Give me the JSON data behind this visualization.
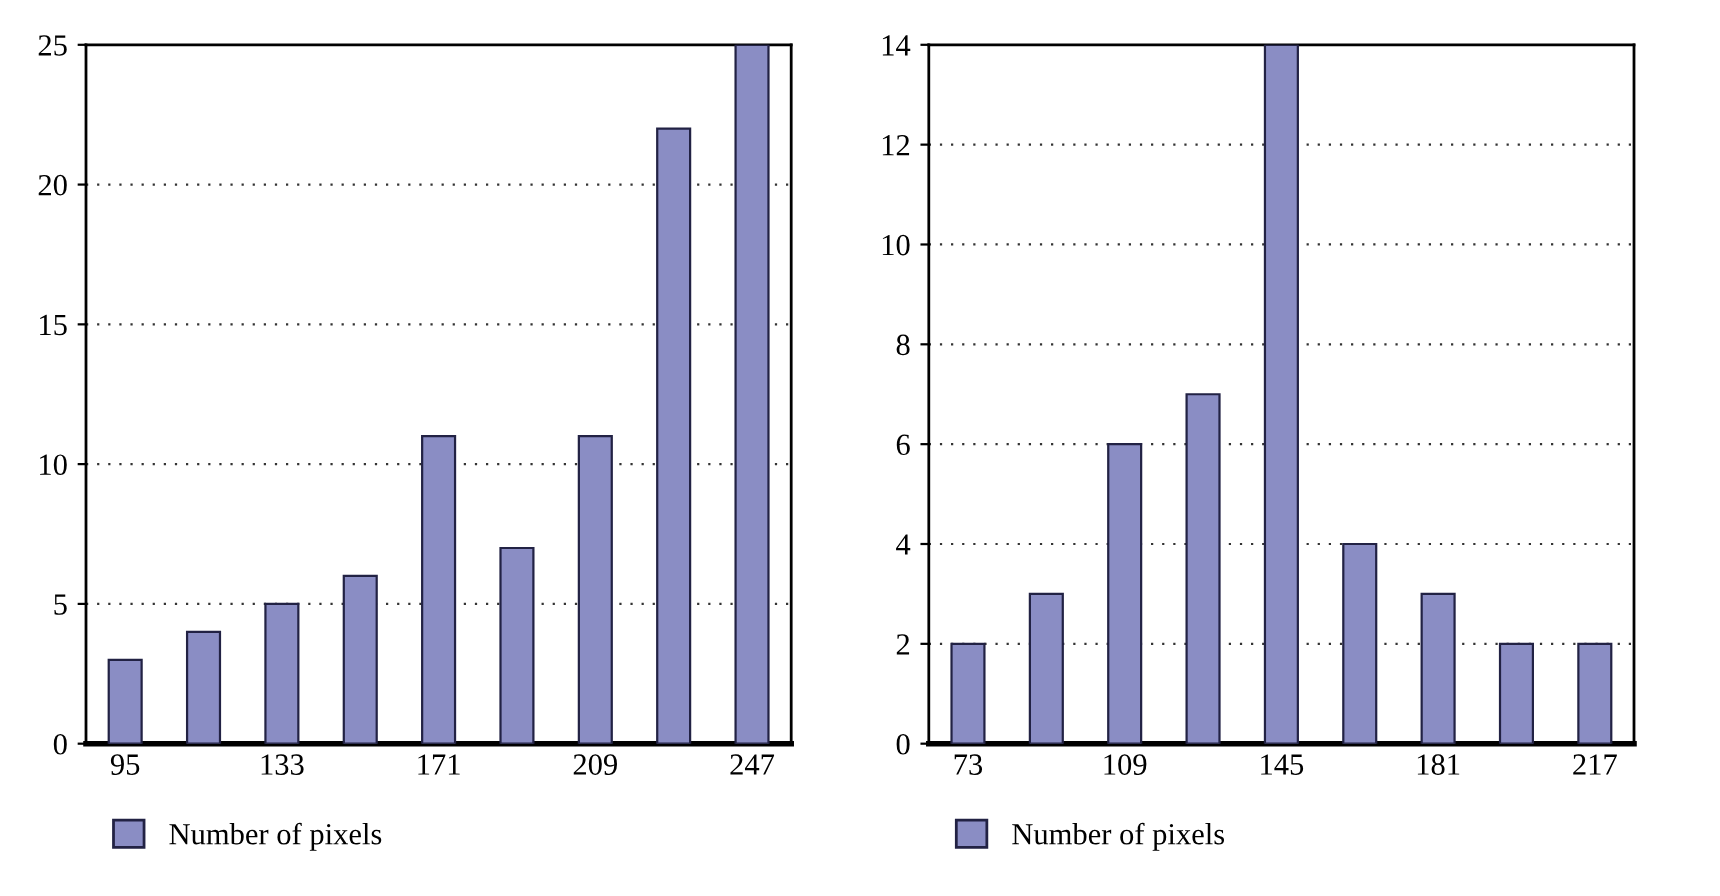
{
  "chart_data": [
    {
      "type": "bar",
      "categories": [
        "95",
        null,
        "133",
        null,
        "171",
        null,
        "209",
        null,
        "247"
      ],
      "series": [
        {
          "name": "Number of pixels",
          "color": "#8a8dc4",
          "values": [
            3,
            4,
            5,
            6,
            11,
            7,
            11,
            22,
            25
          ]
        }
      ],
      "ylim": [
        0,
        25
      ],
      "yticks": [
        0,
        5,
        10,
        15,
        20,
        25
      ],
      "grid": "y",
      "legend": "bottom left"
    },
    {
      "type": "bar",
      "categories": [
        "73",
        null,
        "109",
        null,
        "145",
        null,
        "181",
        null,
        "217"
      ],
      "series": [
        {
          "name": "Number of pixels",
          "color": "#8a8dc4",
          "values": [
            2,
            3,
            6,
            7,
            14,
            4,
            3,
            2,
            2
          ]
        }
      ],
      "ylim": [
        0,
        14
      ],
      "yticks": [
        0,
        2,
        4,
        6,
        8,
        10,
        12,
        14
      ],
      "grid": "y",
      "legend": "bottom left"
    }
  ]
}
